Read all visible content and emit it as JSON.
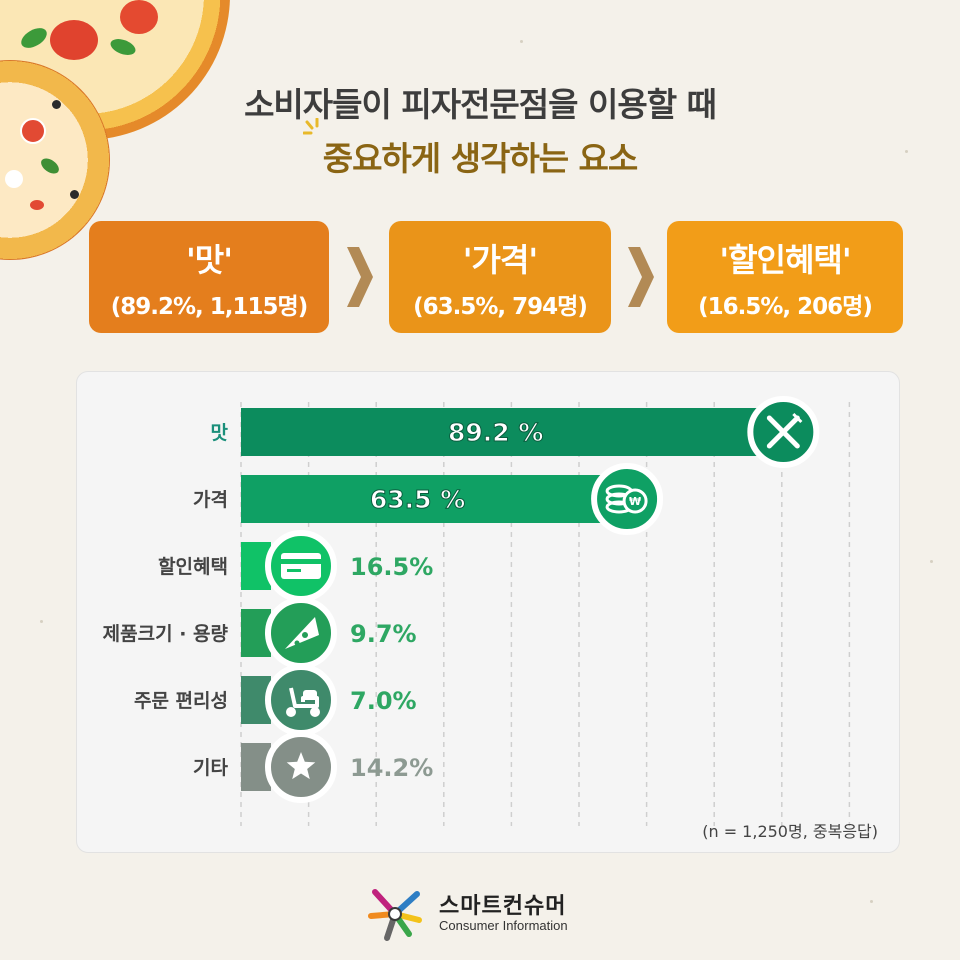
{
  "title": {
    "line1": "소비자들이 피자전문점을 이용할 때",
    "line2": "중요하게 생각하는 요소"
  },
  "summary": [
    {
      "label": "'맛'",
      "detail": "(89.2%, 1,115명)",
      "color": "#e47e1d"
    },
    {
      "label": "'가격'",
      "detail": "(63.5%, 794명)",
      "color": "#ea9419"
    },
    {
      "label": "'할인혜택'",
      "detail": "(16.5%, 206명)",
      "color": "#f29d18"
    }
  ],
  "chart_data": {
    "type": "bar",
    "orientation": "horizontal",
    "categories": [
      "맛",
      "가격",
      "할인혜택",
      "제품크기 · 용량",
      "주문 편리성",
      "기타"
    ],
    "values": [
      89.2,
      63.5,
      16.5,
      9.7,
      7.0,
      14.2
    ],
    "value_labels": [
      "89.2 %",
      "63.5 %",
      "16.5%",
      "9.7%",
      "7.0%",
      "14.2%"
    ],
    "colors": [
      "#0c8c5d",
      "#0fa064",
      "#10c267",
      "#239e58",
      "#3f8a6b",
      "#848f88"
    ],
    "icons": [
      "fork-knife-icon",
      "coins-icon",
      "card-icon",
      "pizza-slice-icon",
      "scooter-icon",
      "star-icon"
    ],
    "xlim": [
      0,
      100
    ],
    "grid": true,
    "note": "(n = 1,250명, 중복응답)"
  },
  "logo": {
    "name": "스마트컨슈머",
    "sub": "Consumer Information"
  }
}
